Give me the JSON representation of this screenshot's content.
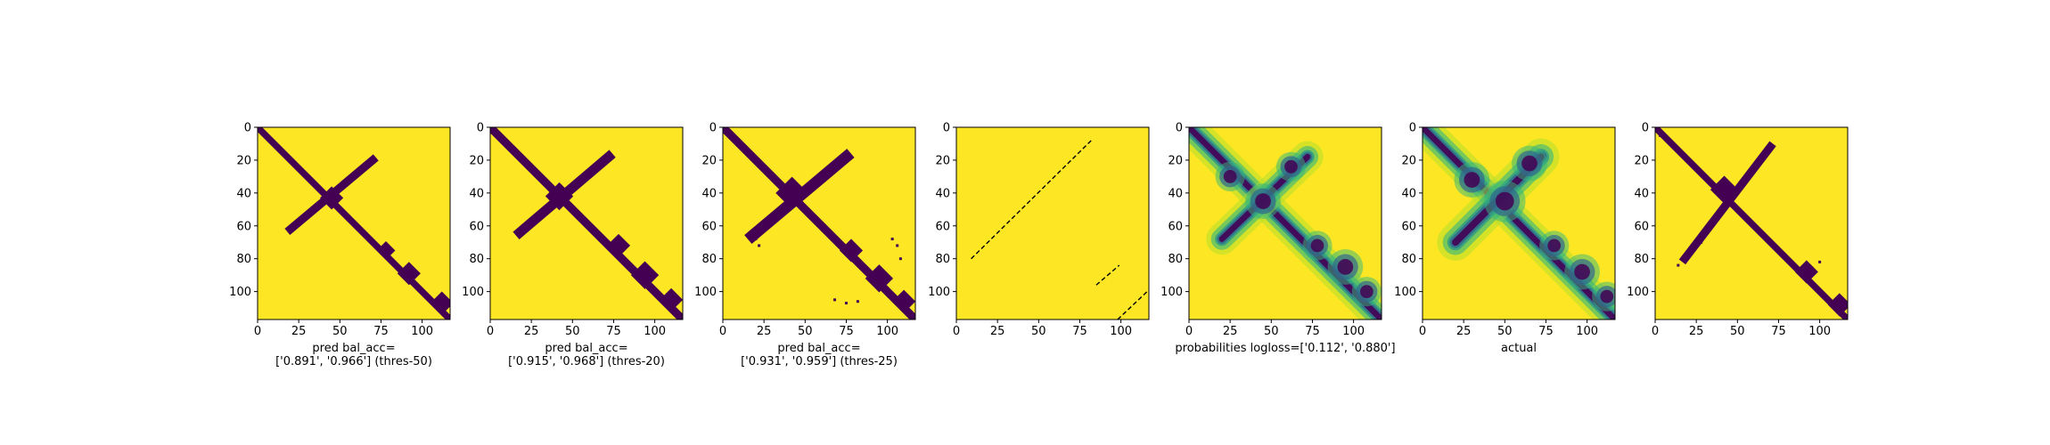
{
  "colors": {
    "background": "#fde725",
    "foreground": "#440154",
    "prob_scale": [
      "#fde725",
      "#b5de2b",
      "#35b779",
      "#21918c",
      "#31688e",
      "#443983",
      "#440154"
    ]
  },
  "chart_data": [
    {
      "type": "heatmap",
      "style": "binary",
      "caption": [
        "pred bal_acc=",
        "['0.891', '0.966'] (thres-50)"
      ],
      "xlim": [
        0,
        117
      ],
      "ylim": [
        117,
        0
      ],
      "xticks": [
        0,
        25,
        50,
        75,
        100
      ],
      "yticks": [
        0,
        20,
        40,
        60,
        80,
        100
      ],
      "bands": [
        {
          "from": [
            0,
            0
          ],
          "to": [
            117,
            117
          ],
          "width": 4
        },
        {
          "from": [
            20,
            62
          ],
          "to": [
            70,
            20
          ],
          "width": 5
        }
      ],
      "blobs": [
        {
          "x": 45,
          "y": 43,
          "r": 5
        },
        {
          "x": 78,
          "y": 75,
          "r": 4
        },
        {
          "x": 92,
          "y": 89,
          "r": 5
        },
        {
          "x": 112,
          "y": 107,
          "r": 5
        }
      ],
      "specks": []
    },
    {
      "type": "heatmap",
      "style": "binary",
      "caption": [
        "pred bal_acc=",
        "['0.915', '0.968'] (thres-20)"
      ],
      "xlim": [
        0,
        117
      ],
      "ylim": [
        117,
        0
      ],
      "xticks": [
        0,
        25,
        50,
        75,
        100
      ],
      "yticks": [
        0,
        20,
        40,
        60,
        80,
        100
      ],
      "bands": [
        {
          "from": [
            0,
            0
          ],
          "to": [
            117,
            117
          ],
          "width": 5
        },
        {
          "from": [
            18,
            64
          ],
          "to": [
            72,
            18
          ],
          "width": 6
        }
      ],
      "blobs": [
        {
          "x": 42,
          "y": 42,
          "r": 6
        },
        {
          "x": 78,
          "y": 72,
          "r": 5
        },
        {
          "x": 94,
          "y": 90,
          "r": 6
        },
        {
          "x": 110,
          "y": 105,
          "r": 5
        }
      ],
      "specks": []
    },
    {
      "type": "heatmap",
      "style": "binary",
      "caption": [
        "pred bal_acc=",
        "['0.931', '0.959'] (thres-25)"
      ],
      "xlim": [
        0,
        117
      ],
      "ylim": [
        117,
        0
      ],
      "xticks": [
        0,
        25,
        50,
        75,
        100
      ],
      "yticks": [
        0,
        20,
        40,
        60,
        80,
        100
      ],
      "bands": [
        {
          "from": [
            0,
            0
          ],
          "to": [
            117,
            117
          ],
          "width": 5
        },
        {
          "from": [
            18,
            66
          ],
          "to": [
            75,
            18
          ],
          "width": 7
        }
      ],
      "blobs": [
        {
          "x": 42,
          "y": 40,
          "r": 7
        },
        {
          "x": 78,
          "y": 75,
          "r": 5
        },
        {
          "x": 95,
          "y": 92,
          "r": 6
        },
        {
          "x": 110,
          "y": 106,
          "r": 5
        }
      ],
      "specks": [
        {
          "x": 20,
          "y": 68
        },
        {
          "x": 22,
          "y": 72
        },
        {
          "x": 103,
          "y": 68
        },
        {
          "x": 106,
          "y": 72
        },
        {
          "x": 108,
          "y": 80
        },
        {
          "x": 68,
          "y": 105
        },
        {
          "x": 75,
          "y": 107
        },
        {
          "x": 82,
          "y": 106
        }
      ]
    },
    {
      "type": "heatmap",
      "style": "dashes",
      "caption": [],
      "xlim": [
        0,
        117
      ],
      "ylim": [
        117,
        0
      ],
      "xticks": [
        0,
        25,
        50,
        75,
        100
      ],
      "yticks": [
        0,
        20,
        40,
        60,
        80,
        100
      ],
      "lines": [
        {
          "from": [
            9,
            80
          ],
          "to": [
            83,
            7
          ]
        },
        {
          "from": [
            85,
            96
          ],
          "to": [
            99,
            84
          ]
        },
        {
          "from": [
            98,
            117
          ],
          "to": [
            117,
            99
          ]
        }
      ]
    },
    {
      "type": "heatmap",
      "style": "probability",
      "caption": [
        "probabilities logloss=['0.112', '0.880']"
      ],
      "xlim": [
        0,
        117
      ],
      "ylim": [
        117,
        0
      ],
      "xticks": [
        0,
        25,
        50,
        75,
        100
      ],
      "yticks": [
        0,
        20,
        40,
        60,
        80,
        100
      ],
      "bands": [
        {
          "from": [
            0,
            0
          ],
          "to": [
            117,
            117
          ],
          "width": 6
        },
        {
          "from": [
            20,
            68
          ],
          "to": [
            72,
            18
          ],
          "width": 6
        }
      ],
      "blobs": [
        {
          "x": 25,
          "y": 30,
          "r": 5
        },
        {
          "x": 45,
          "y": 45,
          "r": 6
        },
        {
          "x": 62,
          "y": 24,
          "r": 5
        },
        {
          "x": 78,
          "y": 72,
          "r": 5
        },
        {
          "x": 95,
          "y": 85,
          "r": 6
        },
        {
          "x": 108,
          "y": 100,
          "r": 5
        }
      ]
    },
    {
      "type": "heatmap",
      "style": "probability",
      "caption": [
        "actual"
      ],
      "xlim": [
        0,
        117
      ],
      "ylim": [
        117,
        0
      ],
      "xticks": [
        0,
        25,
        50,
        75,
        100
      ],
      "yticks": [
        0,
        20,
        40,
        60,
        80,
        100
      ],
      "bands": [
        {
          "from": [
            0,
            0
          ],
          "to": [
            117,
            117
          ],
          "width": 6
        },
        {
          "from": [
            20,
            70
          ],
          "to": [
            72,
            18
          ],
          "width": 7
        }
      ],
      "blobs": [
        {
          "x": 30,
          "y": 32,
          "r": 6
        },
        {
          "x": 50,
          "y": 45,
          "r": 7
        },
        {
          "x": 65,
          "y": 22,
          "r": 6
        },
        {
          "x": 80,
          "y": 72,
          "r": 5
        },
        {
          "x": 97,
          "y": 88,
          "r": 6
        },
        {
          "x": 112,
          "y": 103,
          "r": 5
        }
      ]
    },
    {
      "type": "heatmap",
      "style": "binary",
      "caption": [],
      "xlim": [
        0,
        117
      ],
      "ylim": [
        117,
        0
      ],
      "xticks": [
        0,
        25,
        50,
        75,
        100
      ],
      "yticks": [
        0,
        20,
        40,
        60,
        80,
        100
      ],
      "bands": [
        {
          "from": [
            0,
            0
          ],
          "to": [
            117,
            117
          ],
          "width": 4
        },
        {
          "from": [
            18,
            80
          ],
          "to": [
            70,
            12
          ],
          "width": 5
        }
      ],
      "blobs": [
        {
          "x": 42,
          "y": 38,
          "r": 6
        },
        {
          "x": 92,
          "y": 88,
          "r": 5
        },
        {
          "x": 112,
          "y": 108,
          "r": 5
        }
      ],
      "specks": [
        {
          "x": 3,
          "y": 5
        },
        {
          "x": 14,
          "y": 84
        },
        {
          "x": 28,
          "y": 70
        },
        {
          "x": 100,
          "y": 82
        }
      ]
    }
  ]
}
